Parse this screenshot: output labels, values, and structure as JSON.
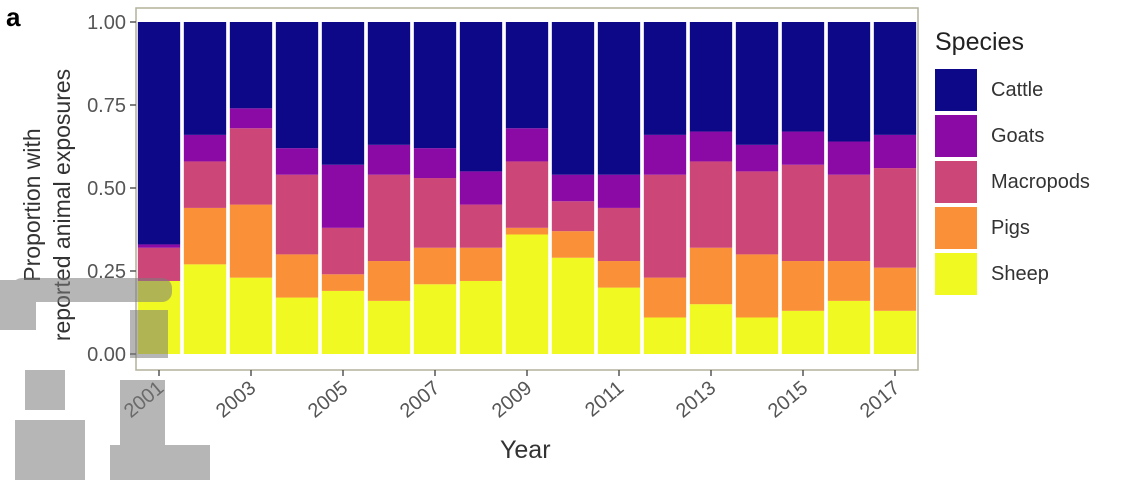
{
  "panel_label": "a",
  "chart_data": {
    "type": "bar",
    "stacked": true,
    "x": [
      2001,
      2002,
      2003,
      2004,
      2005,
      2006,
      2007,
      2008,
      2009,
      2010,
      2011,
      2012,
      2013,
      2014,
      2015,
      2016,
      2017
    ],
    "xticks": [
      "2001",
      "2003",
      "2005",
      "2007",
      "2009",
      "2011",
      "2013",
      "2015",
      "2017"
    ],
    "xlabel": "Year",
    "ylabel": "Proportion with reported animal exposures",
    "ylabel_lines": [
      "Proportion with",
      "reported animal exposures"
    ],
    "ylim": [
      0,
      1
    ],
    "yticks": [
      "0.00",
      "0.25",
      "0.50",
      "0.75",
      "1.00"
    ],
    "legend_title": "Species",
    "legend_position": "right",
    "grid": false,
    "series": [
      {
        "name": "Sheep",
        "color": "#F0F921",
        "values": [
          0.22,
          0.27,
          0.23,
          0.17,
          0.19,
          0.16,
          0.21,
          0.22,
          0.36,
          0.29,
          0.2,
          0.11,
          0.15,
          0.11,
          0.13,
          0.16,
          0.13
        ]
      },
      {
        "name": "Pigs",
        "color": "#FA9138",
        "values": [
          0.0,
          0.17,
          0.22,
          0.13,
          0.05,
          0.12,
          0.11,
          0.1,
          0.02,
          0.08,
          0.08,
          0.12,
          0.17,
          0.19,
          0.15,
          0.12,
          0.13
        ]
      },
      {
        "name": "Macropods",
        "color": "#CC4678",
        "values": [
          0.1,
          0.14,
          0.23,
          0.24,
          0.14,
          0.26,
          0.21,
          0.13,
          0.2,
          0.09,
          0.16,
          0.31,
          0.26,
          0.25,
          0.29,
          0.26,
          0.3
        ]
      },
      {
        "name": "Goats",
        "color": "#8B0AA5",
        "values": [
          0.01,
          0.08,
          0.06,
          0.08,
          0.19,
          0.09,
          0.09,
          0.1,
          0.1,
          0.08,
          0.1,
          0.12,
          0.09,
          0.08,
          0.1,
          0.1,
          0.1
        ]
      },
      {
        "name": "Cattle",
        "color": "#0D0887",
        "values": [
          0.67,
          0.34,
          0.26,
          0.38,
          0.43,
          0.37,
          0.38,
          0.45,
          0.32,
          0.46,
          0.46,
          0.34,
          0.33,
          0.37,
          0.33,
          0.36,
          0.34
        ]
      }
    ],
    "legend_order": [
      "Cattle",
      "Goats",
      "Macropods",
      "Pigs",
      "Sheep"
    ],
    "panel_background": "#ffffff",
    "panel_border": "#b3b09a"
  }
}
